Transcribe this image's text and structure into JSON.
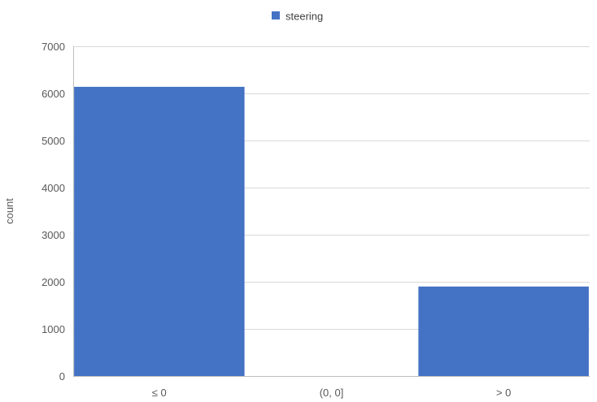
{
  "chart_data": {
    "type": "bar",
    "title": "",
    "xlabel": "",
    "ylabel": "count",
    "categories": [
      "≤ 0",
      "(0, 0]",
      "> 0"
    ],
    "series": [
      {
        "name": "steering",
        "values": [
          6140,
          0,
          1900
        ]
      }
    ],
    "ylim": [
      0,
      7000
    ],
    "yticks": [
      0,
      1000,
      2000,
      3000,
      4000,
      5000,
      6000,
      7000
    ],
    "grid": true,
    "legend_position": "top-center",
    "colors": {
      "series": "#4472c4",
      "grid": "#d9d9d9",
      "text": "#595959"
    }
  }
}
